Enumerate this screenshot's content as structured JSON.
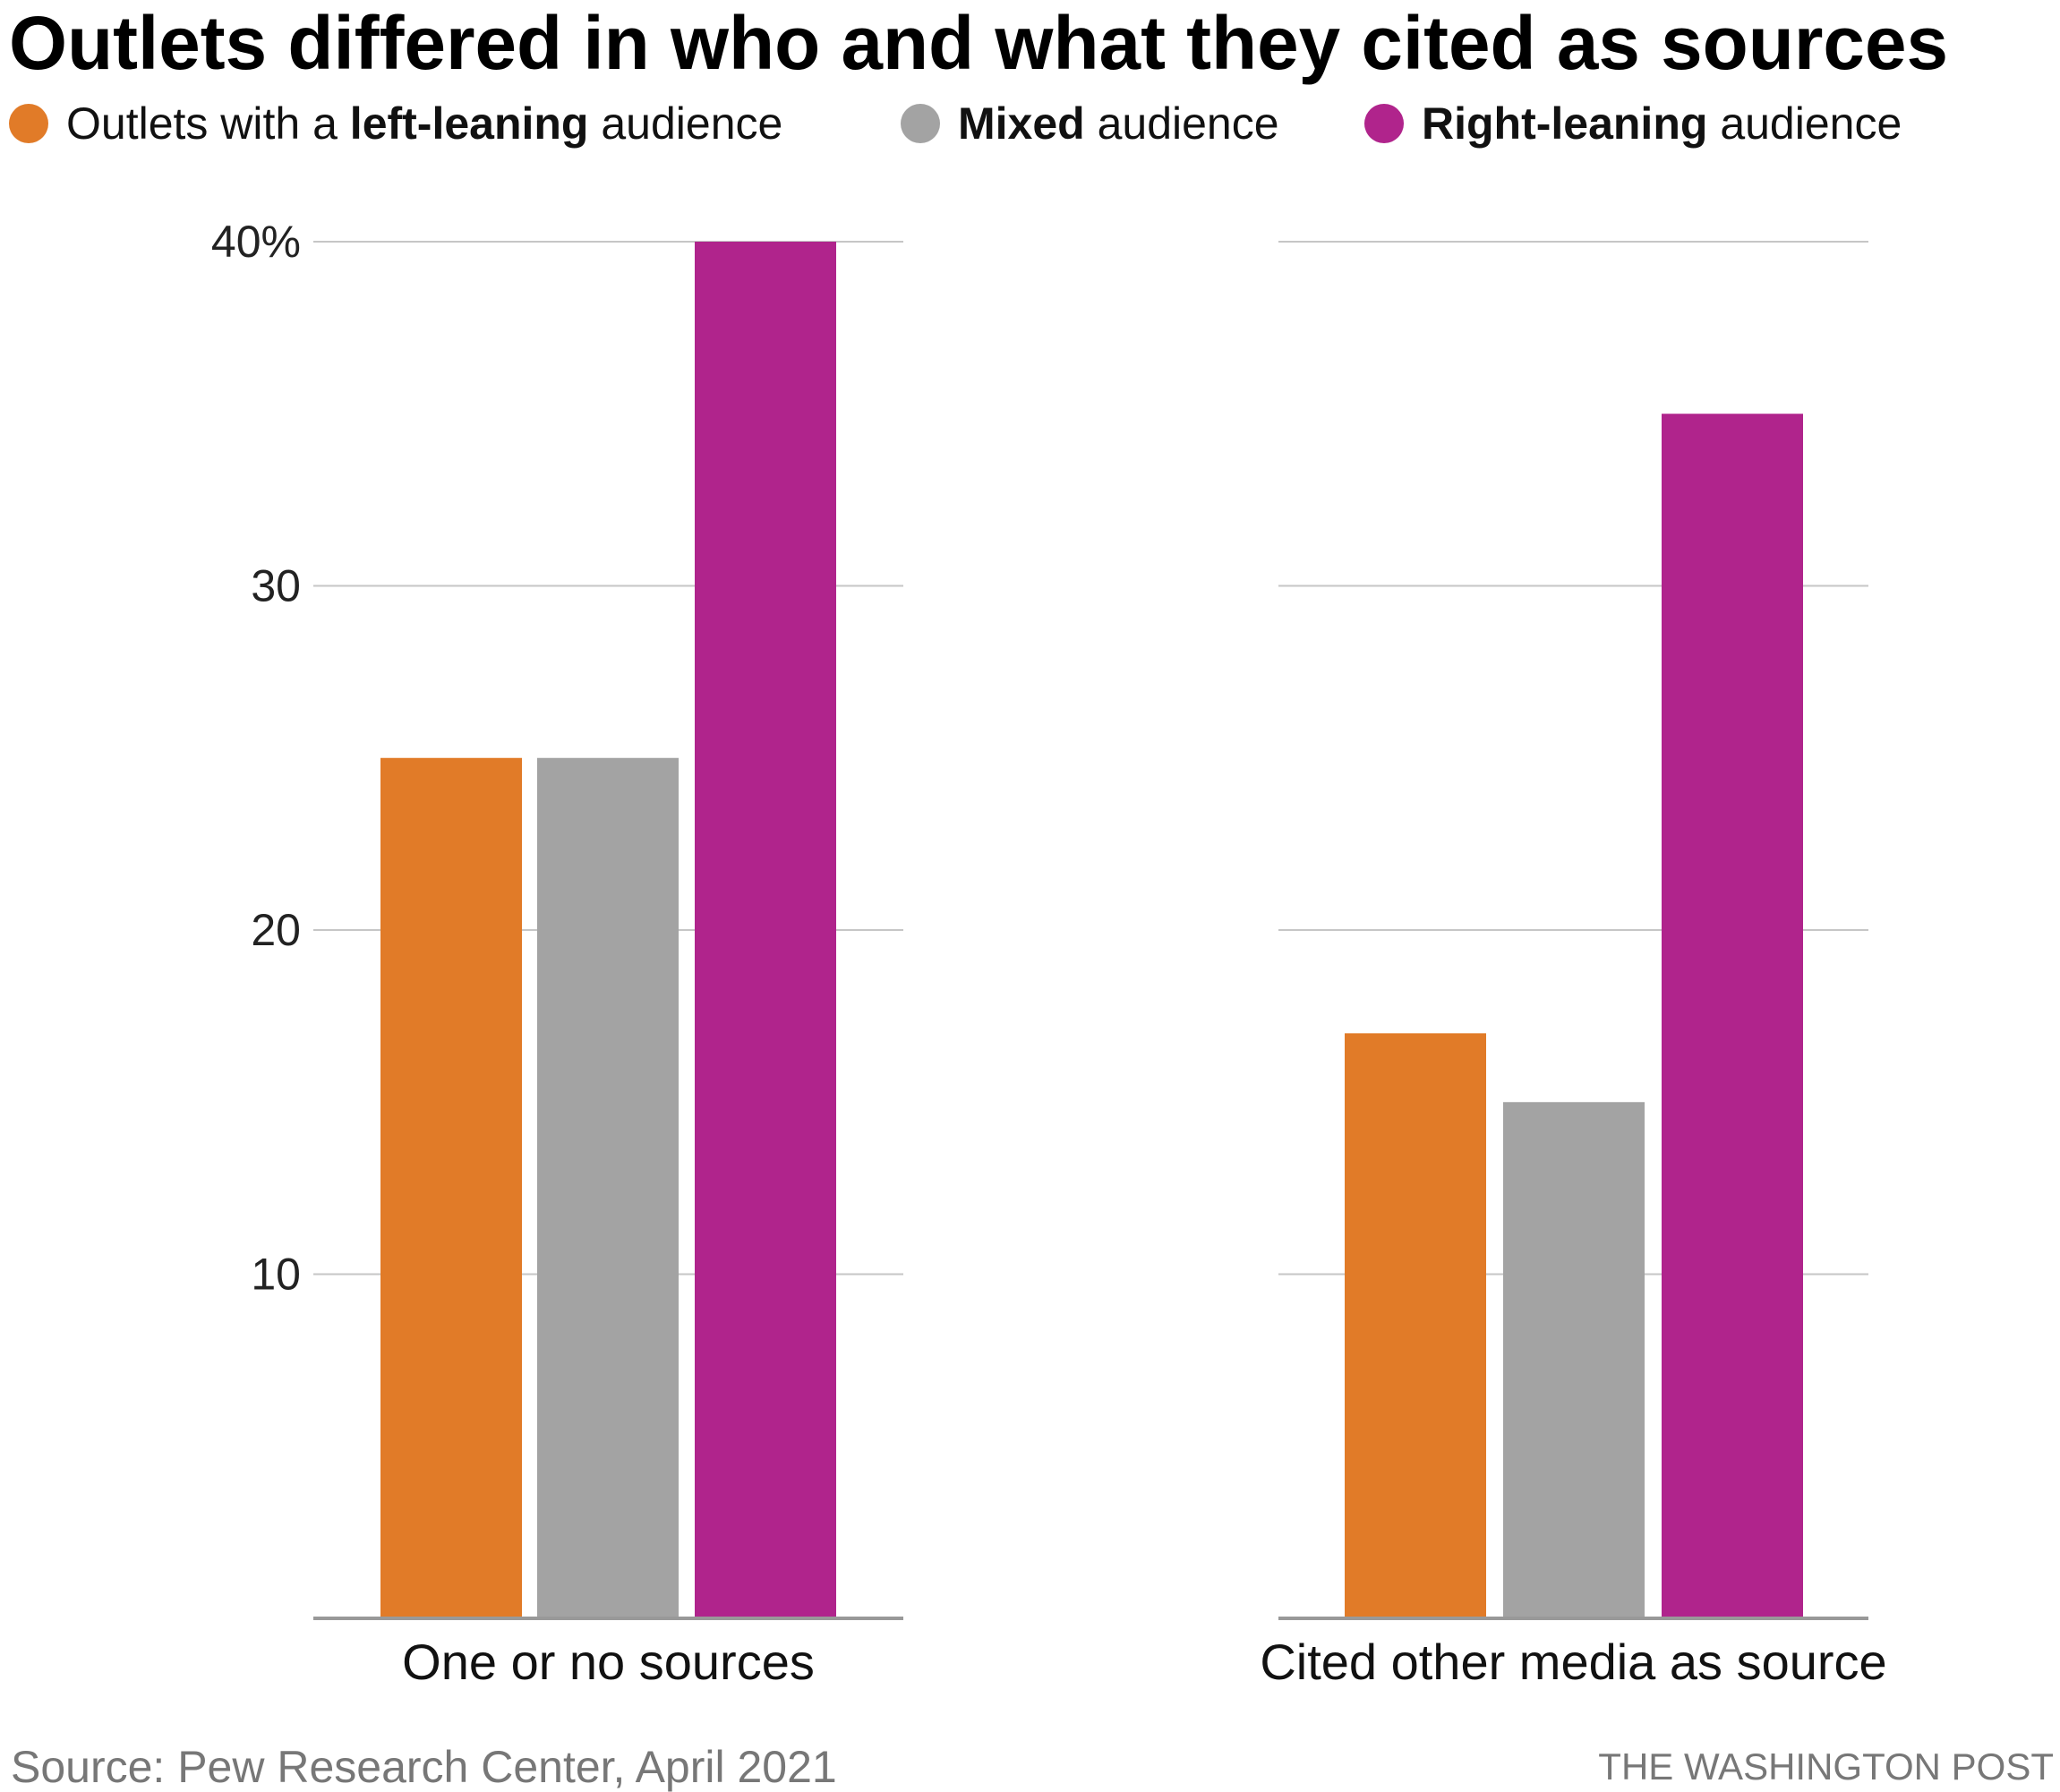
{
  "chart_data": {
    "type": "bar",
    "title": "Outlets differed in who and what they cited as sources",
    "legend": [
      {
        "pre": "Outlets with a ",
        "bold": "left-leaning",
        "post": " audience",
        "color": "#E17B28"
      },
      {
        "pre": "",
        "bold": "Mixed",
        "post": " audience",
        "color": "#A3A3A3"
      },
      {
        "pre": "",
        "bold": "Right-leaning",
        "post": " audience",
        "color": "#B0248C"
      }
    ],
    "legend_placement": "top",
    "categories": [
      "One or no sources",
      "Cited other media as source"
    ],
    "series": [
      {
        "name": "Outlets with a left-leaning audience",
        "color": "#E17B28",
        "values": [
          25,
          17
        ]
      },
      {
        "name": "Mixed audience",
        "color": "#A3A3A3",
        "values": [
          25,
          15
        ]
      },
      {
        "name": "Right-leaning audience",
        "color": "#B0248C",
        "values": [
          40,
          35
        ]
      }
    ],
    "ylim": [
      0,
      40
    ],
    "yticks": [
      10,
      20,
      30,
      40
    ],
    "ytick_labels": [
      "10",
      "20",
      "30",
      "40%"
    ],
    "grid": true,
    "source": "Source: Pew Research Center, April 2021",
    "credit": "THE WASHINGTON POST"
  }
}
